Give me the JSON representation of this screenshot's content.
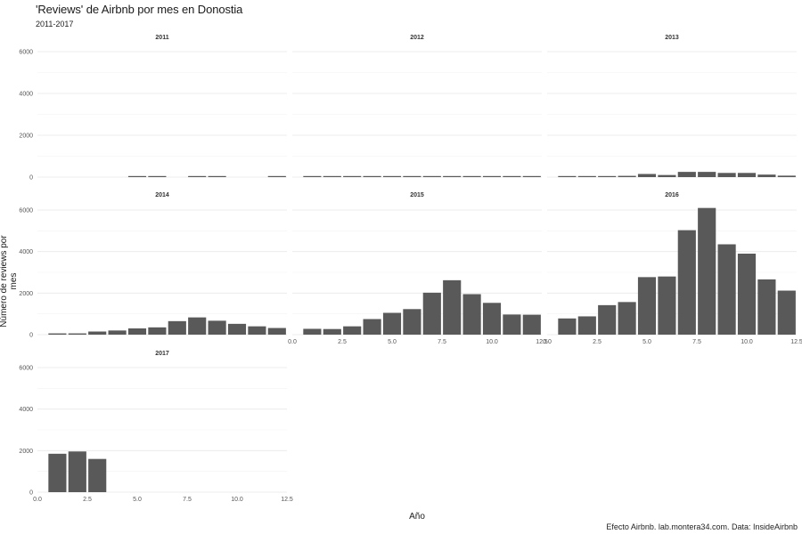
{
  "title": "'Reviews' de Airbnb por mes en Donostia",
  "subtitle": "2011-2017",
  "caption": "Efecto Airbnb. lab.montera34.com. Data: InsideAirbnb",
  "chart_data": {
    "type": "bar",
    "xlabel": "Año",
    "ylabel": "Número de reviews por mes",
    "xlim": [
      0,
      12.5
    ],
    "ylim": [
      0,
      6100
    ],
    "x_ticks": [
      0.0,
      2.5,
      5.0,
      7.5,
      10.0,
      12.5
    ],
    "x_tick_labels": [
      "0.0",
      "2.5",
      "5.0",
      "7.5",
      "10.0",
      "12.5"
    ],
    "y_ticks": [
      0,
      2000,
      4000,
      6000
    ],
    "y_tick_labels": [
      "0",
      "2000",
      "4000",
      "6000"
    ],
    "grid": true,
    "bar_color": "#595959",
    "facets": [
      {
        "title": "2011",
        "months": [
          5,
          6,
          8,
          9,
          12
        ],
        "values": [
          10,
          10,
          10,
          10,
          10
        ]
      },
      {
        "title": "2012",
        "months": [
          1,
          2,
          3,
          4,
          5,
          6,
          7,
          8,
          9,
          10,
          11,
          12
        ],
        "values": [
          15,
          15,
          15,
          15,
          15,
          15,
          20,
          30,
          20,
          20,
          15,
          15
        ]
      },
      {
        "title": "2013",
        "months": [
          1,
          2,
          3,
          4,
          5,
          6,
          7,
          8,
          9,
          10,
          11,
          12
        ],
        "values": [
          20,
          20,
          30,
          60,
          150,
          100,
          250,
          250,
          200,
          200,
          120,
          70
        ]
      },
      {
        "title": "2014",
        "months": [
          1,
          2,
          3,
          4,
          5,
          6,
          7,
          8,
          9,
          10,
          11,
          12
        ],
        "values": [
          60,
          60,
          150,
          200,
          300,
          350,
          650,
          830,
          670,
          520,
          400,
          320
        ]
      },
      {
        "title": "2015",
        "months": [
          1,
          2,
          3,
          4,
          5,
          6,
          7,
          8,
          9,
          10,
          11,
          12
        ],
        "values": [
          280,
          270,
          400,
          750,
          1050,
          1230,
          2020,
          2620,
          1950,
          1530,
          970,
          960
        ]
      },
      {
        "title": "2016",
        "months": [
          1,
          2,
          3,
          4,
          5,
          6,
          7,
          8,
          9,
          10,
          11,
          12
        ],
        "values": [
          780,
          880,
          1420,
          1570,
          2770,
          2800,
          5030,
          6100,
          4350,
          3900,
          2660,
          2120
        ]
      },
      {
        "title": "2017",
        "months": [
          1,
          2,
          3
        ],
        "values": [
          1850,
          1960,
          1600
        ]
      }
    ]
  }
}
